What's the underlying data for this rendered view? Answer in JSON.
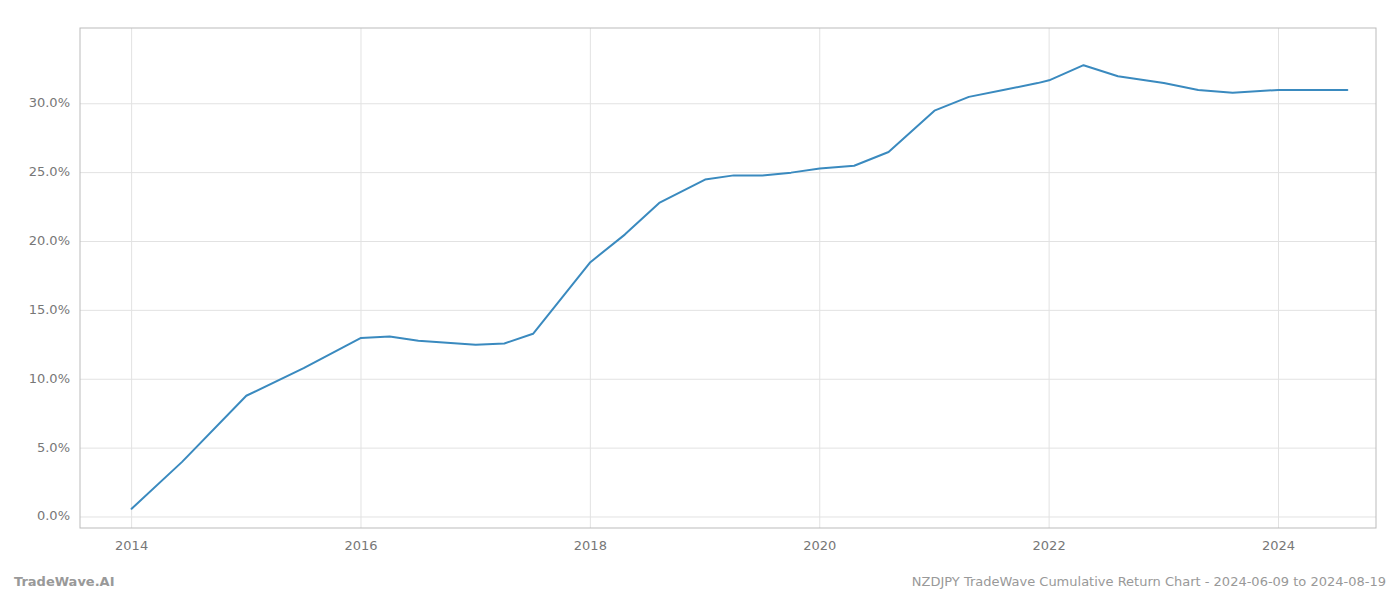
{
  "chart_data": {
    "type": "line",
    "x": [
      2014.0,
      2014.44,
      2015.0,
      2015.5,
      2016.0,
      2016.25,
      2016.5,
      2017.0,
      2017.25,
      2017.5,
      2018.0,
      2018.3,
      2018.6,
      2019.0,
      2019.25,
      2019.5,
      2019.75,
      2020.0,
      2020.3,
      2020.6,
      2021.0,
      2021.3,
      2021.6,
      2021.9,
      2022.0,
      2022.3,
      2022.6,
      2023.0,
      2023.3,
      2023.6,
      2024.0,
      2024.6
    ],
    "values": [
      0.006,
      0.04,
      0.088,
      0.108,
      0.13,
      0.131,
      0.128,
      0.125,
      0.126,
      0.133,
      0.185,
      0.205,
      0.228,
      0.245,
      0.248,
      0.248,
      0.25,
      0.253,
      0.255,
      0.265,
      0.295,
      0.305,
      0.31,
      0.315,
      0.317,
      0.328,
      0.32,
      0.315,
      0.31,
      0.308,
      0.31,
      0.31
    ],
    "color": "#3a8abf",
    "xlim": [
      2013.55,
      2024.85
    ],
    "xticks": [
      2014,
      2016,
      2018,
      2020,
      2022,
      2024
    ],
    "ylim": [
      -0.008,
      0.355
    ],
    "yticks": [
      {
        "value": 0.0,
        "label": "0.0%"
      },
      {
        "value": 0.05,
        "label": "5.0%"
      },
      {
        "value": 0.1,
        "label": "10.0%"
      },
      {
        "value": 0.15,
        "label": "15.0%"
      },
      {
        "value": 0.2,
        "label": "20.0%"
      },
      {
        "value": 0.25,
        "label": "25.0%"
      },
      {
        "value": 0.3,
        "label": "30.0%"
      }
    ],
    "grid": true,
    "annotations": [
      "TradeWave.AI",
      "NZDJPY TradeWave Cumulative Return Chart - 2024-06-09 to 2024-08-19"
    ]
  }
}
